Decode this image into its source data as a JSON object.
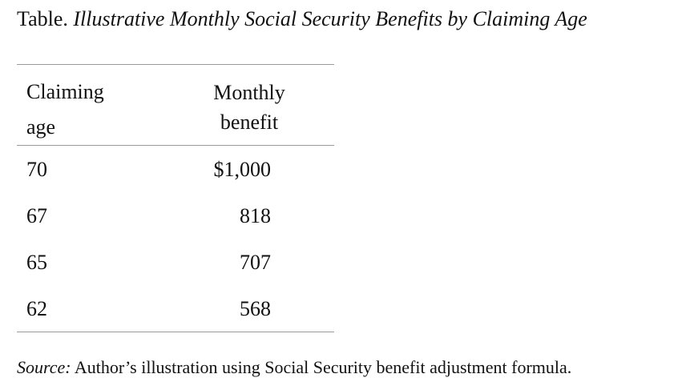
{
  "title": {
    "prefix": "Table.",
    "text": "Illustrative Monthly Social Security Benefits by Claiming Age"
  },
  "table": {
    "headers": {
      "age_line1": "Claiming",
      "age_line2": "age",
      "benefit_line1": "Monthly",
      "benefit_line2": "benefit"
    },
    "rows": [
      {
        "age": "70",
        "benefit": "$1,000"
      },
      {
        "age": "67",
        "benefit": "818"
      },
      {
        "age": "65",
        "benefit": "707"
      },
      {
        "age": "62",
        "benefit": "568"
      }
    ]
  },
  "source": {
    "label": "Source:",
    "text": "Author’s illustration using Social Security benefit adjustment formula."
  }
}
